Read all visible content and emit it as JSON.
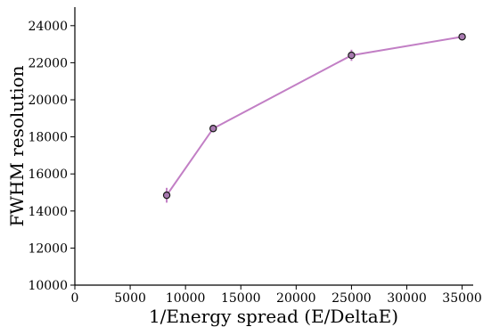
{
  "chart_data": {
    "type": "line",
    "title": "",
    "xlabel": "1/Energy spread (E/DeltaE)",
    "ylabel": "FWHM resolution",
    "xlim": [
      0,
      36000
    ],
    "ylim": [
      10000,
      25000
    ],
    "xticks": [
      0,
      5000,
      10000,
      15000,
      20000,
      25000,
      30000,
      35000
    ],
    "yticks": [
      10000,
      12000,
      14000,
      16000,
      18000,
      20000,
      22000,
      24000
    ],
    "grid": false,
    "series": [
      {
        "x": [
          8300,
          12500,
          25000,
          35000
        ],
        "y": [
          14850,
          18450,
          22400,
          23400
        ],
        "yerr": [
          400,
          150,
          300,
          150
        ],
        "color": "#c27fc5",
        "marker_face": "#a87ab0",
        "marker_edge": "#1a1a1a"
      }
    ]
  }
}
